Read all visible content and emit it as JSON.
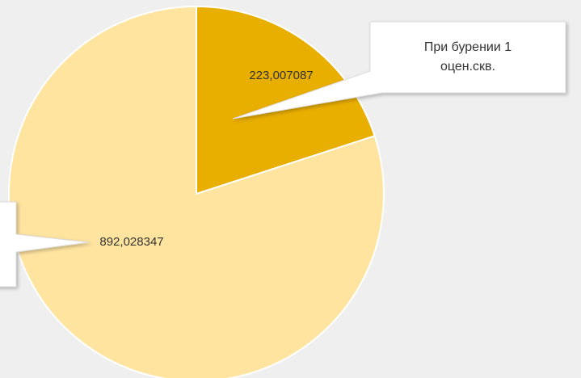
{
  "chart_data": {
    "type": "pie",
    "categories": [
      "При бурении 1 оцен.скв.",
      null
    ],
    "values": [
      223.007087,
      892.028347
    ],
    "value_labels": [
      "223,007087",
      "892,028347"
    ],
    "colors": [
      "#e8ae00",
      "#ffe4a0"
    ]
  }
}
